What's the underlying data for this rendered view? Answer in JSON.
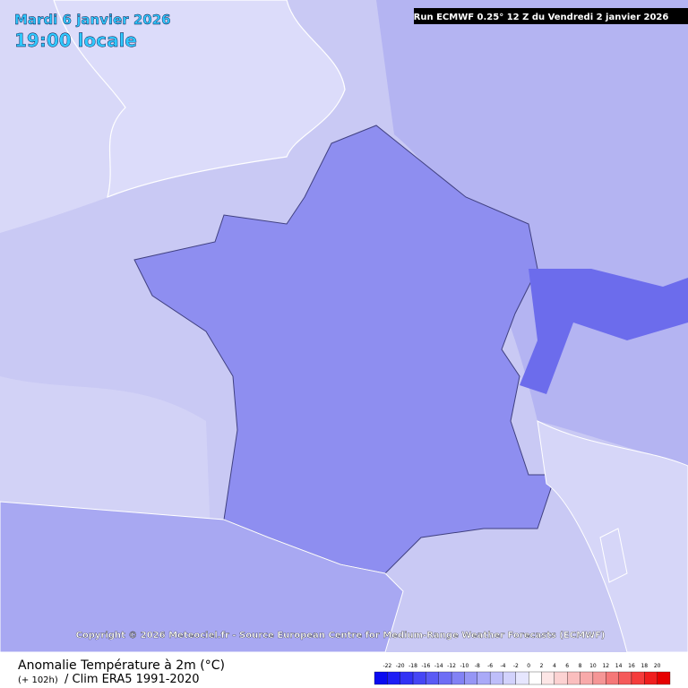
{
  "header": {
    "date": "Mardi 6 janvier 2026",
    "time": "19:00 locale",
    "run": "Run ECMWF 0.25° 12 Z du Vendredi 2 janvier 2026"
  },
  "copyright": "Copyright © 2026 Meteociel.fr - Source European Centre for Medium-Range Weather Forecasts (ECMWF)",
  "footer": {
    "title": "Anomalie Température à 2m (°C)",
    "lead": "(+ 102h)",
    "clim": "/ Clim ERA5 1991-2020"
  },
  "legend": {
    "ticks": [
      -22,
      -20,
      -18,
      -16,
      -14,
      -12,
      -10,
      -8,
      -6,
      -4,
      -2,
      0,
      2,
      4,
      6,
      8,
      10,
      12,
      14,
      16,
      18,
      20
    ],
    "colors": [
      "#0a0af0",
      "#1e1ef5",
      "#3232f5",
      "#4646f5",
      "#5a5af5",
      "#6e6ef5",
      "#8282f5",
      "#9696f5",
      "#aaaaf8",
      "#bebefa",
      "#d2d2fc",
      "#e6e6fe",
      "#ffffff",
      "#fde6e6",
      "#fcd2d2",
      "#fabebe",
      "#f8aaaa",
      "#f59696",
      "#f57878",
      "#f55a5a",
      "#f53c3c",
      "#f01e1e",
      "#e60000"
    ]
  }
}
